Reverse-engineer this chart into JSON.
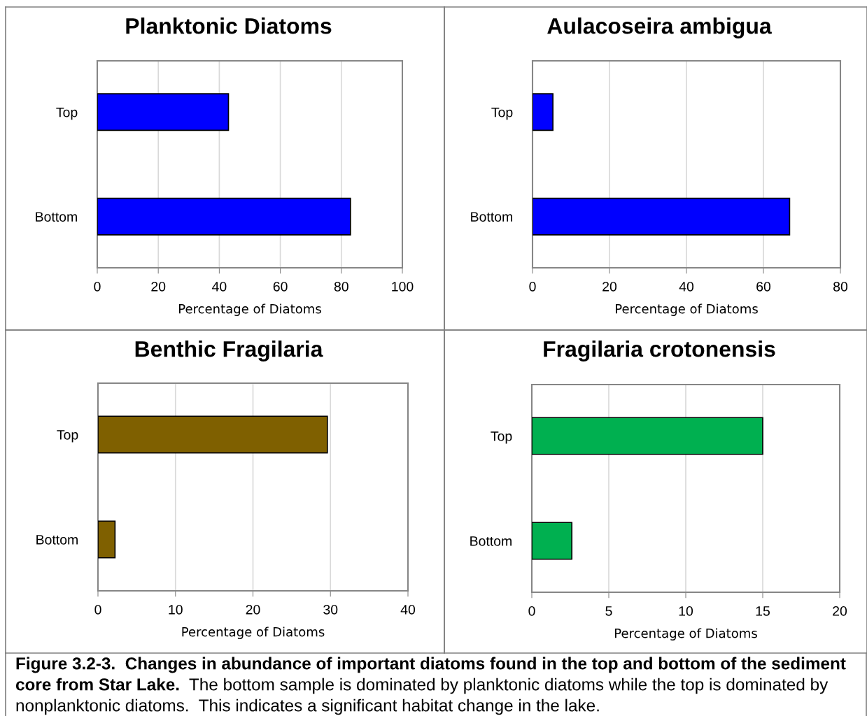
{
  "chart_data": [
    {
      "type": "bar",
      "orientation": "horizontal",
      "title": "Planktonic Diatoms",
      "xlabel": "Percentage of Diatoms",
      "categories": [
        "Top",
        "Bottom"
      ],
      "values": [
        43,
        83
      ],
      "color": "#0000ff",
      "xlim": [
        0,
        100
      ],
      "xticks": [
        0,
        20,
        40,
        60,
        80,
        100
      ],
      "grid": "x"
    },
    {
      "type": "bar",
      "orientation": "horizontal",
      "title": "Aulacoseira ambigua",
      "xlabel": "Percentage of Diatoms",
      "categories": [
        "Top",
        "Bottom"
      ],
      "values": [
        5.3,
        66.8
      ],
      "color": "#0000ff",
      "xlim": [
        0,
        80
      ],
      "xticks": [
        0,
        20,
        40,
        60,
        80
      ],
      "grid": "x"
    },
    {
      "type": "bar",
      "orientation": "horizontal",
      "title": "Benthic Fragilaria",
      "xlabel": "Percentage of Diatoms",
      "categories": [
        "Top",
        "Bottom"
      ],
      "values": [
        29.6,
        2.2
      ],
      "color": "#7f6000",
      "xlim": [
        0,
        40
      ],
      "xticks": [
        0,
        10,
        20,
        30,
        40
      ],
      "grid": "x"
    },
    {
      "type": "bar",
      "orientation": "horizontal",
      "title": "Fragilaria crotonensis",
      "xlabel": "Percentage of Diatoms",
      "categories": [
        "Top",
        "Bottom"
      ],
      "values": [
        15,
        2.6
      ],
      "color": "#00b050",
      "xlim": [
        0,
        20
      ],
      "xticks": [
        0,
        5,
        10,
        15,
        20
      ],
      "grid": "x",
      "annotations": [
        "Figure 3.2-3.  Changes in abundance of important diatoms found in the top and bottom of the sediment core from Star Lake.",
        "The bottom sample is dominated by planktonic diatoms while the top is dominated by nonplanktonic diatoms.  This indicates a significant habitat change in the lake."
      ]
    }
  ]
}
